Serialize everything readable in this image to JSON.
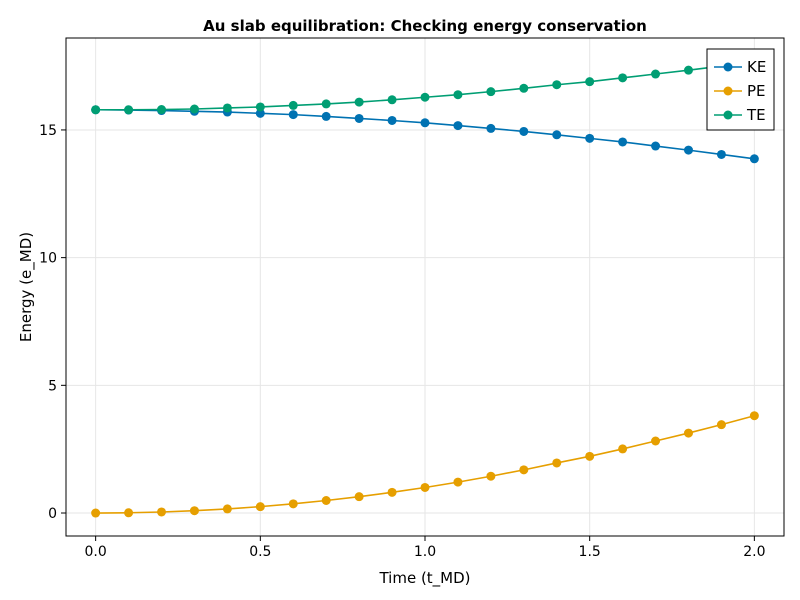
{
  "chart_data": {
    "type": "line",
    "title": "Au slab equilibration: Checking energy conservation",
    "xlabel": "Time (t_MD)",
    "ylabel": "Energy (e_MD)",
    "xlim": [
      -0.09,
      2.09
    ],
    "ylim": [
      -0.9,
      18.6
    ],
    "x_ticks": [
      0.0,
      0.5,
      1.0,
      1.5,
      2.0
    ],
    "x_tick_labels": [
      "0.0",
      "0.5",
      "1.0",
      "1.5",
      "2.0"
    ],
    "y_ticks": [
      0,
      5,
      10,
      15
    ],
    "y_tick_labels": [
      "0",
      "5",
      "10",
      "15"
    ],
    "grid": true,
    "legend_position": "top-right",
    "x": [
      0.0,
      0.1,
      0.2,
      0.3,
      0.4,
      0.5,
      0.6,
      0.7,
      0.8,
      0.9,
      1.0,
      1.1,
      1.2,
      1.3,
      1.4,
      1.5,
      1.6,
      1.7,
      1.8,
      1.9,
      2.0
    ],
    "series": [
      {
        "name": "KE",
        "color": "#0072b2",
        "values": [
          15.79,
          15.78,
          15.76,
          15.73,
          15.7,
          15.65,
          15.6,
          15.53,
          15.45,
          15.37,
          15.28,
          15.17,
          15.06,
          14.94,
          14.81,
          14.67,
          14.53,
          14.37,
          14.21,
          14.04,
          13.87
        ]
      },
      {
        "name": "PE",
        "color": "#e69f00",
        "values": [
          0.0,
          0.01,
          0.04,
          0.09,
          0.16,
          0.25,
          0.36,
          0.49,
          0.64,
          0.81,
          1.0,
          1.21,
          1.44,
          1.69,
          1.96,
          2.22,
          2.51,
          2.82,
          3.13,
          3.46,
          3.81
        ]
      },
      {
        "name": "TE",
        "color": "#009e73",
        "values": [
          15.79,
          15.79,
          15.8,
          15.82,
          15.86,
          15.9,
          15.96,
          16.02,
          16.09,
          16.18,
          16.28,
          16.38,
          16.5,
          16.63,
          16.77,
          16.89,
          17.04,
          17.19,
          17.34,
          17.5,
          17.68
        ]
      }
    ]
  }
}
